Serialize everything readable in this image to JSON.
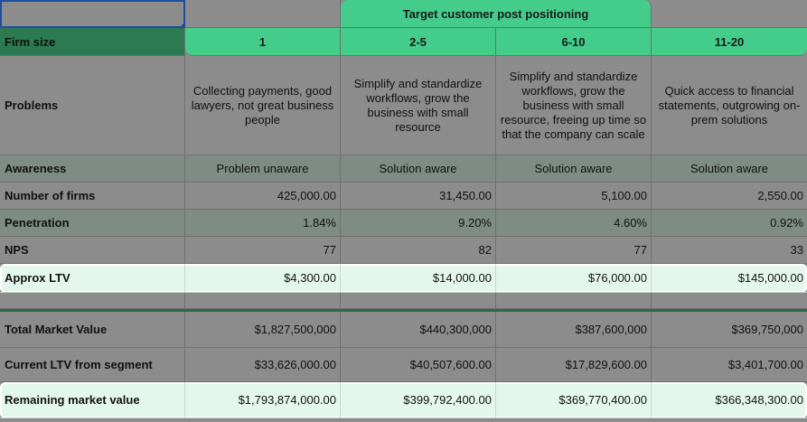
{
  "header": {
    "banner": "Target customer post positioning",
    "firm_size_label": "Firm size",
    "segments": [
      "1",
      "2-5",
      "6-10",
      "11-20"
    ]
  },
  "rows": {
    "problems": {
      "label": "Problems",
      "values": [
        "Collecting payments, good lawyers, not great business people",
        "Simplify and standardize workflows, grow the business with small resource",
        "Simplify and standardize workflows, grow the business with small resource, freeing up time so that the company can scale",
        "Quick access to financial statements, outgrowing on-prem solutions"
      ]
    },
    "awareness": {
      "label": "Awareness",
      "values": [
        "Problem unaware",
        "Solution aware",
        "Solution aware",
        "Solution aware"
      ]
    },
    "number_of_firms": {
      "label": "Number of firms",
      "values": [
        "425,000.00",
        "31,450.00",
        "5,100.00",
        "2,550.00"
      ]
    },
    "penetration": {
      "label": "Penetration",
      "values": [
        "1.84%",
        "9.20%",
        "4.60%",
        "0.92%"
      ]
    },
    "nps": {
      "label": "NPS",
      "values": [
        "77",
        "82",
        "77",
        "33"
      ]
    },
    "approx_ltv": {
      "label": "Approx LTV",
      "values": [
        "$4,300.00",
        "$14,000.00",
        "$76,000.00",
        "$145,000.00"
      ]
    },
    "total_market_value": {
      "label": "Total Market Value",
      "values": [
        "$1,827,500,000",
        "$440,300,000",
        "$387,600,000",
        "$369,750,000"
      ]
    },
    "current_ltv": {
      "label": "Current LTV from segment",
      "values": [
        "$33,626,000.00",
        "$40,507,600.00",
        "$17,829,600.00",
        "$3,401,700.00"
      ]
    },
    "remaining_market_value": {
      "label": "Remaining market value",
      "values": [
        "$1,793,874,000.00",
        "$399,792,400.00",
        "$369,770,400.00",
        "$366,348,300.00"
      ]
    }
  },
  "colors": {
    "header_green": "#43cc8a",
    "firm_size_dark_green": "#2b7a52",
    "highlight_row": "#e4f7ec",
    "sheet_gray": "#8c8c8c",
    "selection_blue": "#1f4e9e"
  }
}
